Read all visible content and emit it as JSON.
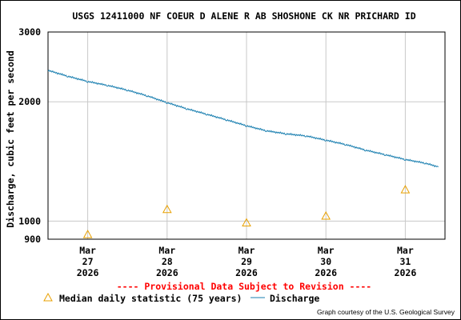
{
  "chart_data": {
    "type": "line",
    "title": "USGS 12411000 NF COEUR D ALENE R AB SHOSHONE CK NR PRICHARD ID",
    "ylabel": "Discharge, cubic feet per second",
    "xlabel": "",
    "y_scale": "log",
    "ylim": [
      900,
      3000
    ],
    "y_ticks": [
      900,
      1000,
      2000,
      3000
    ],
    "xlim": [
      "2026-03-26T12:00",
      "2026-03-31T12:00"
    ],
    "x_ticks": [
      {
        "date": "2026-03-27T00:00",
        "label": [
          "Mar",
          "27",
          "2026"
        ]
      },
      {
        "date": "2026-03-28T00:00",
        "label": [
          "Mar",
          "28",
          "2026"
        ]
      },
      {
        "date": "2026-03-29T00:00",
        "label": [
          "Mar",
          "29",
          "2026"
        ]
      },
      {
        "date": "2026-03-30T00:00",
        "label": [
          "Mar",
          "30",
          "2026"
        ]
      },
      {
        "date": "2026-03-31T00:00",
        "label": [
          "Mar",
          "31",
          "2026"
        ]
      }
    ],
    "grid": true,
    "series": [
      {
        "name": "Discharge",
        "color": "#1a7fb0",
        "points": [
          [
            "2026-03-26T12:00",
            2400
          ],
          [
            "2026-03-26T18:00",
            2320
          ],
          [
            "2026-03-27T00:00",
            2250
          ],
          [
            "2026-03-27T06:00",
            2200
          ],
          [
            "2026-03-27T12:00",
            2140
          ],
          [
            "2026-03-27T18:00",
            2070
          ],
          [
            "2026-03-28T00:00",
            1990
          ],
          [
            "2026-03-28T06:00",
            1920
          ],
          [
            "2026-03-28T12:00",
            1860
          ],
          [
            "2026-03-28T18:00",
            1800
          ],
          [
            "2026-03-29T00:00",
            1740
          ],
          [
            "2026-03-29T06:00",
            1690
          ],
          [
            "2026-03-29T12:00",
            1660
          ],
          [
            "2026-03-29T18:00",
            1640
          ],
          [
            "2026-03-30T00:00",
            1600
          ],
          [
            "2026-03-30T06:00",
            1560
          ],
          [
            "2026-03-30T12:00",
            1510
          ],
          [
            "2026-03-30T18:00",
            1470
          ],
          [
            "2026-03-31T00:00",
            1430
          ],
          [
            "2026-03-31T06:00",
            1400
          ],
          [
            "2026-03-31T10:00",
            1370
          ]
        ]
      },
      {
        "name": "Median daily statistic (75 years)",
        "marker": "triangle",
        "color": "#e8a000",
        "points": [
          [
            "2026-03-27T00:00",
            925
          ],
          [
            "2026-03-28T00:00",
            1070
          ],
          [
            "2026-03-29T00:00",
            990
          ],
          [
            "2026-03-30T00:00",
            1030
          ],
          [
            "2026-03-31T00:00",
            1200
          ]
        ]
      }
    ],
    "legend_position": "bottom-left"
  },
  "notice": "---- Provisional Data Subject to Revision ----",
  "legend": {
    "median_label": "Median daily statistic (75 years)",
    "discharge_label": "Discharge"
  },
  "credit": "Graph courtesy of the U.S. Geological Survey",
  "colors": {
    "notice": "#ff0000",
    "line": "#1a7fb0",
    "marker": "#e8a000",
    "grid": "#c8c8c8"
  }
}
